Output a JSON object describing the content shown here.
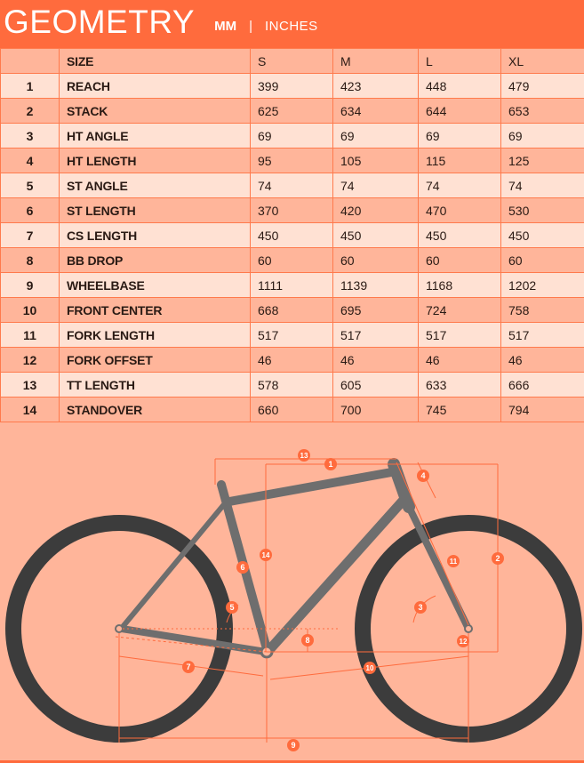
{
  "header": {
    "title": "GEOMETRY",
    "unit_active": "MM",
    "unit_separator": "|",
    "unit_inactive": "INCHES"
  },
  "table": {
    "columns": [
      "",
      "SIZE",
      "S",
      "M",
      "L",
      "XL"
    ],
    "rows": [
      {
        "index": "1",
        "name": "REACH",
        "values": [
          "399",
          "423",
          "448",
          "479"
        ]
      },
      {
        "index": "2",
        "name": "STACK",
        "values": [
          "625",
          "634",
          "644",
          "653"
        ]
      },
      {
        "index": "3",
        "name": "HT ANGLE",
        "values": [
          "69",
          "69",
          "69",
          "69"
        ]
      },
      {
        "index": "4",
        "name": "HT LENGTH",
        "values": [
          "95",
          "105",
          "115",
          "125"
        ]
      },
      {
        "index": "5",
        "name": "ST ANGLE",
        "values": [
          "74",
          "74",
          "74",
          "74"
        ]
      },
      {
        "index": "6",
        "name": "ST LENGTH",
        "values": [
          "370",
          "420",
          "470",
          "530"
        ]
      },
      {
        "index": "7",
        "name": "CS LENGTH",
        "values": [
          "450",
          "450",
          "450",
          "450"
        ]
      },
      {
        "index": "8",
        "name": "BB DROP",
        "values": [
          "60",
          "60",
          "60",
          "60"
        ]
      },
      {
        "index": "9",
        "name": "WHEELBASE",
        "values": [
          "1111",
          "1139",
          "1168",
          "1202"
        ]
      },
      {
        "index": "10",
        "name": "FRONT CENTER",
        "values": [
          "668",
          "695",
          "724",
          "758"
        ]
      },
      {
        "index": "11",
        "name": "FORK LENGTH",
        "values": [
          "517",
          "517",
          "517",
          "517"
        ]
      },
      {
        "index": "12",
        "name": "FORK OFFSET",
        "values": [
          "46",
          "46",
          "46",
          "46"
        ]
      },
      {
        "index": "13",
        "name": "TT LENGTH",
        "values": [
          "578",
          "605",
          "633",
          "666"
        ]
      },
      {
        "index": "14",
        "name": "STANDOVER",
        "values": [
          "660",
          "700",
          "745",
          "794"
        ]
      }
    ]
  },
  "diagram": {
    "markers": [
      "1",
      "2",
      "3",
      "4",
      "5",
      "6",
      "7",
      "8",
      "9",
      "10",
      "11",
      "12",
      "13",
      "14"
    ],
    "colors": {
      "accent": "#ff6b3d",
      "frame": "#6e6e6e",
      "tire": "#3c3c3c",
      "background": "#ffb59a",
      "row_light": "#ffe1d3"
    }
  }
}
